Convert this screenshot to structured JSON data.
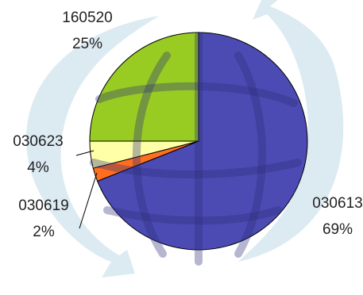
{
  "chart_data": {
    "type": "pie",
    "title": "",
    "slices": [
      {
        "label": "030613",
        "value": 69,
        "percent_label": "69%",
        "color": "#4B4BB3"
      },
      {
        "label": "030619",
        "value": 2,
        "percent_label": "2%",
        "color": "#FF6E1F"
      },
      {
        "label": "030623",
        "value": 4,
        "percent_label": "4%",
        "color": "#FFFFA8"
      },
      {
        "label": "160520",
        "value": 25,
        "percent_label": "25%",
        "color": "#99CC22"
      }
    ],
    "start_angle_deg": 90,
    "direction": "clockwise",
    "legend": "none",
    "background": {
      "globe_icon": "globe-icon",
      "arrows_icon": "circular-arrows-icon",
      "arrow_color": "#D8E8F0"
    }
  }
}
